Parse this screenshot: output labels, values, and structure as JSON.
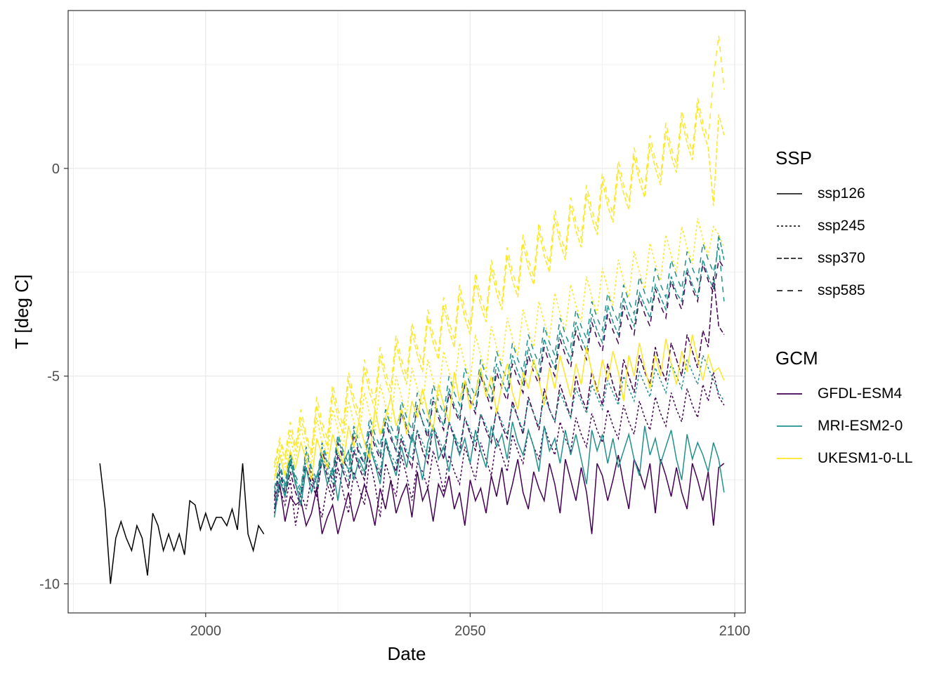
{
  "chart_data": {
    "type": "line",
    "xlabel": "Date",
    "ylabel": "T [deg C]",
    "xlim": [
      1974,
      2102
    ],
    "ylim": [
      -10.7,
      3.8
    ],
    "xticks": [
      2000,
      2050,
      2100
    ],
    "yticks": [
      -10,
      -5,
      0
    ],
    "grid": true,
    "legend": {
      "placement": "right",
      "linetype_title": "SSP",
      "color_title": "GCM",
      "linetypes": [
        {
          "name": "ssp126",
          "dash": ""
        },
        {
          "name": "ssp245",
          "dash": "3,3"
        },
        {
          "name": "ssp370",
          "dash": "7,3"
        },
        {
          "name": "ssp585",
          "dash": "8,7"
        }
      ],
      "colors": [
        {
          "name": "GFDL-ESM4",
          "color": "#440154"
        },
        {
          "name": "MRI-ESM2-0",
          "color": "#21908C"
        },
        {
          "name": "UKESM1-0-LL",
          "color": "#FDE725"
        }
      ]
    },
    "historical": {
      "color": "#000000",
      "x": [
        1980,
        1981,
        1982,
        1983,
        1984,
        1985,
        1986,
        1987,
        1988,
        1989,
        1990,
        1991,
        1992,
        1993,
        1994,
        1995,
        1996,
        1997,
        1998,
        1999,
        2000,
        2001,
        2002,
        2003,
        2004,
        2005,
        2006,
        2007,
        2008,
        2009,
        2010,
        2011
      ],
      "y": [
        -7.1,
        -8.2,
        -10.0,
        -8.9,
        -8.5,
        -8.9,
        -9.2,
        -8.6,
        -8.9,
        -9.8,
        -8.3,
        -8.6,
        -9.2,
        -8.8,
        -9.2,
        -8.8,
        -9.3,
        -8.0,
        -8.1,
        -8.7,
        -8.3,
        -8.7,
        -8.4,
        -8.4,
        -8.6,
        -8.2,
        -8.7,
        -7.1,
        -8.8,
        -9.2,
        -8.6,
        -8.8
      ]
    },
    "scenario_series": [
      {
        "gcm": "GFDL-ESM4",
        "ssp": "ssp126",
        "x_start": 2013,
        "y": [
          -8.2,
          -7.6,
          -8.5,
          -7.9,
          -8.1,
          -8.0,
          -8.6,
          -8.3,
          -7.7,
          -8.8,
          -8.4,
          -8.1,
          -8.8,
          -8.3,
          -7.8,
          -8.5,
          -8.1,
          -7.6,
          -8.0,
          -8.6,
          -7.7,
          -8.2,
          -7.5,
          -8.3,
          -7.9,
          -7.6,
          -8.4,
          -7.3,
          -8.0,
          -7.7,
          -8.5,
          -7.6,
          -7.9,
          -7.4,
          -8.2,
          -7.8,
          -8.6,
          -7.5,
          -8.0,
          -7.7,
          -8.3,
          -7.4,
          -7.9,
          -7.2,
          -8.1,
          -7.6,
          -7.0,
          -7.8,
          -8.2,
          -7.3,
          -7.7,
          -8.0,
          -7.1,
          -7.6,
          -8.3,
          -7.0,
          -7.5,
          -8.0,
          -7.2,
          -7.8,
          -8.8,
          -7.1,
          -7.4,
          -8.0,
          -7.5,
          -6.9,
          -7.6,
          -8.2,
          -7.0,
          -7.3,
          -7.7,
          -7.1,
          -8.3,
          -7.0,
          -7.4,
          -7.9,
          -7.2,
          -7.8,
          -8.2,
          -7.1,
          -7.5,
          -8.0,
          -7.3,
          -8.6,
          -7.2,
          -7.1
        ]
      },
      {
        "gcm": "GFDL-ESM4",
        "ssp": "ssp245",
        "x_start": 2013,
        "y": [
          -8.3,
          -7.7,
          -8.1,
          -7.5,
          -8.6,
          -7.8,
          -8.2,
          -7.4,
          -7.9,
          -8.4,
          -7.6,
          -8.0,
          -7.2,
          -7.8,
          -8.3,
          -7.3,
          -7.7,
          -8.1,
          -7.0,
          -7.6,
          -8.4,
          -7.1,
          -7.5,
          -7.9,
          -6.9,
          -7.4,
          -8.0,
          -7.1,
          -7.3,
          -7.7,
          -6.8,
          -7.2,
          -7.8,
          -6.9,
          -7.3,
          -7.6,
          -6.7,
          -7.1,
          -7.5,
          -6.6,
          -7.0,
          -7.4,
          -6.5,
          -6.9,
          -7.3,
          -6.4,
          -6.8,
          -7.1,
          -6.3,
          -6.7,
          -7.0,
          -6.2,
          -6.6,
          -6.9,
          -6.1,
          -6.5,
          -6.8,
          -6.0,
          -6.4,
          -6.7,
          -5.9,
          -6.3,
          -6.6,
          -5.8,
          -6.2,
          -6.5,
          -5.7,
          -6.1,
          -6.4,
          -5.6,
          -6.0,
          -6.3,
          -5.5,
          -5.9,
          -6.2,
          -5.4,
          -5.8,
          -6.1,
          -5.3,
          -5.7,
          -6.0,
          -5.2,
          -5.6,
          -4.9,
          -5.5,
          -5.7
        ]
      },
      {
        "gcm": "GFDL-ESM4",
        "ssp": "ssp370",
        "x_start": 2013,
        "y": [
          -8.0,
          -7.5,
          -7.9,
          -7.3,
          -7.8,
          -8.1,
          -7.2,
          -7.6,
          -7.9,
          -7.0,
          -7.4,
          -7.8,
          -6.9,
          -7.3,
          -7.7,
          -6.8,
          -7.2,
          -7.5,
          -6.7,
          -7.1,
          -7.4,
          -6.6,
          -7.0,
          -7.3,
          -6.5,
          -6.9,
          -7.2,
          -6.3,
          -6.8,
          -7.1,
          -6.2,
          -6.6,
          -7.0,
          -6.1,
          -6.5,
          -6.9,
          -6.0,
          -6.4,
          -6.8,
          -5.9,
          -6.3,
          -6.6,
          -5.8,
          -6.2,
          -6.5,
          -5.6,
          -6.0,
          -6.4,
          -5.5,
          -5.9,
          -6.3,
          -5.3,
          -5.8,
          -6.1,
          -5.2,
          -5.6,
          -6.0,
          -5.0,
          -5.5,
          -5.8,
          -4.9,
          -5.3,
          -5.7,
          -4.7,
          -5.2,
          -5.6,
          -4.6,
          -5.0,
          -5.4,
          -4.5,
          -4.9,
          -5.2,
          -4.3,
          -4.8,
          -5.1,
          -4.2,
          -4.6,
          -5.0,
          -4.0,
          -4.4,
          -4.8,
          -3.9,
          -4.3,
          -2.6,
          -3.8,
          -4.0
        ]
      },
      {
        "gcm": "GFDL-ESM4",
        "ssp": "ssp585",
        "x_start": 2013,
        "y": [
          -7.9,
          -7.3,
          -7.8,
          -7.1,
          -7.6,
          -7.9,
          -7.0,
          -7.4,
          -7.7,
          -6.8,
          -7.2,
          -7.5,
          -6.6,
          -7.0,
          -7.3,
          -6.4,
          -6.9,
          -7.1,
          -6.3,
          -6.7,
          -7.0,
          -6.1,
          -6.5,
          -6.8,
          -5.9,
          -6.3,
          -6.6,
          -5.7,
          -6.1,
          -6.5,
          -5.6,
          -6.0,
          -6.3,
          -5.4,
          -5.8,
          -6.1,
          -5.2,
          -5.6,
          -5.9,
          -5.0,
          -5.4,
          -5.8,
          -4.9,
          -5.3,
          -5.6,
          -4.7,
          -5.1,
          -5.4,
          -4.5,
          -4.9,
          -5.2,
          -4.3,
          -4.7,
          -5.0,
          -4.1,
          -4.5,
          -4.8,
          -3.9,
          -4.3,
          -4.6,
          -3.7,
          -4.1,
          -4.4,
          -3.5,
          -3.9,
          -4.2,
          -3.3,
          -3.7,
          -4.0,
          -3.1,
          -3.5,
          -3.8,
          -2.9,
          -3.3,
          -3.6,
          -2.7,
          -3.1,
          -3.4,
          -2.5,
          -2.9,
          -3.2,
          -2.3,
          -2.7,
          -3.0,
          -2.2,
          -2.4
        ]
      },
      {
        "gcm": "MRI-ESM2-0",
        "ssp": "ssp126",
        "x_start": 2013,
        "y": [
          -8.4,
          -7.5,
          -7.9,
          -7.0,
          -7.6,
          -8.1,
          -7.2,
          -7.8,
          -7.4,
          -7.0,
          -7.6,
          -7.2,
          -8.0,
          -7.1,
          -6.8,
          -7.5,
          -7.0,
          -7.3,
          -6.7,
          -7.1,
          -7.6,
          -6.5,
          -7.0,
          -7.4,
          -6.7,
          -7.2,
          -6.4,
          -6.9,
          -7.5,
          -6.6,
          -6.2,
          -7.0,
          -6.7,
          -7.3,
          -6.4,
          -6.9,
          -6.5,
          -7.1,
          -6.3,
          -6.8,
          -7.2,
          -6.2,
          -6.7,
          -6.4,
          -7.0,
          -6.1,
          -6.6,
          -6.9,
          -6.3,
          -6.7,
          -7.3,
          -6.2,
          -6.8,
          -6.5,
          -7.1,
          -6.3,
          -6.9,
          -6.4,
          -7.0,
          -7.6,
          -6.3,
          -6.8,
          -6.4,
          -7.1,
          -6.5,
          -7.2,
          -6.8,
          -6.4,
          -7.0,
          -7.4,
          -6.2,
          -6.9,
          -6.5,
          -7.1,
          -6.7,
          -6.3,
          -7.0,
          -7.5,
          -6.4,
          -7.0,
          -6.6,
          -6.9,
          -7.3,
          -6.6,
          -7.0,
          -7.8
        ]
      },
      {
        "gcm": "MRI-ESM2-0",
        "ssp": "ssp245",
        "x_start": 2013,
        "y": [
          -8.1,
          -7.4,
          -7.9,
          -7.1,
          -7.6,
          -7.9,
          -7.0,
          -7.5,
          -7.8,
          -6.9,
          -7.3,
          -7.6,
          -6.8,
          -7.2,
          -7.5,
          -6.7,
          -7.1,
          -7.4,
          -6.6,
          -7.0,
          -7.3,
          -6.5,
          -6.9,
          -7.1,
          -6.4,
          -6.8,
          -7.0,
          -6.3,
          -6.6,
          -6.9,
          -6.2,
          -6.5,
          -6.8,
          -6.1,
          -6.4,
          -6.7,
          -6.0,
          -6.3,
          -6.6,
          -5.9,
          -6.2,
          -6.5,
          -5.8,
          -6.1,
          -6.4,
          -5.7,
          -6.0,
          -6.3,
          -5.6,
          -5.9,
          -6.2,
          -5.5,
          -5.8,
          -6.1,
          -5.4,
          -5.7,
          -6.0,
          -5.3,
          -5.6,
          -5.9,
          -5.2,
          -5.5,
          -5.8,
          -5.1,
          -5.4,
          -5.7,
          -5.0,
          -5.3,
          -5.6,
          -4.9,
          -5.2,
          -5.5,
          -4.8,
          -5.1,
          -5.4,
          -4.7,
          -5.0,
          -5.3,
          -4.6,
          -4.9,
          -5.2,
          -4.5,
          -4.8,
          -5.1,
          -5.4,
          -5.6
        ]
      },
      {
        "gcm": "MRI-ESM2-0",
        "ssp": "ssp370",
        "x_start": 2013,
        "y": [
          -7.8,
          -7.2,
          -7.7,
          -6.9,
          -7.5,
          -7.8,
          -6.8,
          -7.3,
          -7.6,
          -6.7,
          -7.1,
          -7.4,
          -6.5,
          -6.9,
          -7.3,
          -6.3,
          -6.8,
          -7.1,
          -6.2,
          -6.6,
          -6.9,
          -6.0,
          -6.4,
          -6.8,
          -5.8,
          -6.2,
          -6.6,
          -5.7,
          -6.1,
          -6.4,
          -5.5,
          -5.9,
          -6.2,
          -5.3,
          -5.7,
          -6.0,
          -5.1,
          -5.5,
          -5.8,
          -4.9,
          -5.3,
          -5.6,
          -4.7,
          -5.1,
          -5.4,
          -4.5,
          -4.9,
          -5.2,
          -4.3,
          -4.7,
          -5.0,
          -4.1,
          -4.5,
          -4.8,
          -3.9,
          -4.3,
          -4.6,
          -3.7,
          -4.1,
          -4.4,
          -3.5,
          -3.9,
          -4.2,
          -3.3,
          -3.7,
          -4.0,
          -3.1,
          -3.5,
          -3.8,
          -3.0,
          -3.3,
          -3.6,
          -2.8,
          -3.1,
          -3.4,
          -2.6,
          -3.0,
          -3.2,
          -2.4,
          -2.8,
          -3.1,
          -2.2,
          -2.6,
          -2.9,
          -1.6,
          -2.2
        ]
      },
      {
        "gcm": "MRI-ESM2-0",
        "ssp": "ssp585",
        "x_start": 2013,
        "y": [
          -7.7,
          -7.1,
          -7.6,
          -6.8,
          -7.4,
          -7.7,
          -6.7,
          -7.2,
          -7.5,
          -6.6,
          -7.0,
          -7.3,
          -6.4,
          -6.8,
          -7.1,
          -6.2,
          -6.6,
          -6.9,
          -6.0,
          -6.4,
          -6.7,
          -5.8,
          -6.2,
          -6.5,
          -5.6,
          -6.0,
          -6.3,
          -5.4,
          -5.8,
          -6.1,
          -5.2,
          -5.6,
          -5.9,
          -5.0,
          -5.4,
          -5.7,
          -4.8,
          -5.2,
          -5.5,
          -4.6,
          -5.0,
          -5.3,
          -4.4,
          -4.8,
          -5.1,
          -4.2,
          -4.6,
          -4.9,
          -4.0,
          -4.4,
          -4.7,
          -3.8,
          -4.2,
          -4.5,
          -3.6,
          -4.0,
          -4.3,
          -3.4,
          -3.8,
          -4.1,
          -3.2,
          -3.6,
          -3.9,
          -3.0,
          -3.4,
          -3.7,
          -2.8,
          -3.2,
          -3.5,
          -2.6,
          -3.0,
          -3.3,
          -2.4,
          -2.8,
          -3.1,
          -2.2,
          -2.6,
          -2.9,
          -2.0,
          -2.4,
          -2.7,
          -1.8,
          -2.2,
          -2.5,
          -1.9,
          -3.2
        ]
      },
      {
        "gcm": "UKESM1-0-LL",
        "ssp": "ssp126",
        "x_start": 2013,
        "y": [
          -7.5,
          -6.9,
          -7.4,
          -6.8,
          -7.2,
          -6.6,
          -7.0,
          -7.5,
          -6.5,
          -6.9,
          -7.2,
          -6.4,
          -6.8,
          -7.1,
          -6.2,
          -6.7,
          -6.1,
          -6.6,
          -7.0,
          -5.8,
          -6.4,
          -6.0,
          -5.5,
          -6.2,
          -5.8,
          -6.4,
          -5.6,
          -6.0,
          -5.3,
          -5.9,
          -6.3,
          -5.2,
          -5.7,
          -6.1,
          -4.9,
          -5.6,
          -5.1,
          -5.8,
          -5.4,
          -4.8,
          -5.5,
          -5.0,
          -5.9,
          -5.2,
          -4.7,
          -5.4,
          -5.8,
          -4.9,
          -5.3,
          -4.6,
          -5.1,
          -5.7,
          -4.8,
          -5.3,
          -4.5,
          -5.0,
          -5.5,
          -4.7,
          -5.2,
          -4.3,
          -4.9,
          -5.4,
          -4.6,
          -5.1,
          -4.4,
          -4.9,
          -5.6,
          -4.5,
          -5.0,
          -4.2,
          -4.8,
          -5.3,
          -4.5,
          -5.0,
          -4.1,
          -4.7,
          -5.2,
          -4.4,
          -4.9,
          -4.0,
          -4.6,
          -5.1,
          -4.5,
          -4.9,
          -4.8,
          -5.1
        ]
      },
      {
        "gcm": "UKESM1-0-LL",
        "ssp": "ssp245",
        "x_start": 2013,
        "y": [
          -7.4,
          -6.8,
          -7.2,
          -6.5,
          -7.0,
          -6.2,
          -6.8,
          -7.1,
          -6.0,
          -6.6,
          -6.9,
          -5.8,
          -6.3,
          -6.7,
          -5.6,
          -6.1,
          -6.5,
          -5.4,
          -5.9,
          -6.3,
          -5.2,
          -5.7,
          -6.1,
          -5.0,
          -5.5,
          -5.9,
          -4.8,
          -5.3,
          -5.7,
          -4.6,
          -5.1,
          -5.5,
          -4.4,
          -4.9,
          -5.3,
          -4.2,
          -4.7,
          -5.1,
          -4.0,
          -4.5,
          -4.9,
          -3.8,
          -4.3,
          -4.7,
          -3.6,
          -4.1,
          -4.5,
          -3.4,
          -3.9,
          -4.3,
          -3.2,
          -3.7,
          -4.1,
          -3.0,
          -3.5,
          -3.9,
          -2.8,
          -3.3,
          -3.7,
          -2.6,
          -3.1,
          -3.5,
          -2.4,
          -2.9,
          -3.3,
          -2.2,
          -2.7,
          -3.1,
          -2.0,
          -2.5,
          -2.9,
          -1.8,
          -2.3,
          -2.7,
          -1.6,
          -2.1,
          -2.5,
          -1.4,
          -1.9,
          -2.3,
          -1.2,
          -1.7,
          -2.1,
          -1.4,
          -1.6,
          -1.9
        ]
      },
      {
        "gcm": "UKESM1-0-LL",
        "ssp": "ssp370",
        "x_start": 2013,
        "y": [
          -7.2,
          -6.6,
          -7.0,
          -6.3,
          -6.8,
          -6.0,
          -6.5,
          -6.9,
          -5.7,
          -6.3,
          -6.7,
          -5.4,
          -6.0,
          -6.4,
          -5.1,
          -5.7,
          -6.1,
          -4.8,
          -5.4,
          -5.8,
          -4.5,
          -5.1,
          -5.5,
          -4.2,
          -4.8,
          -5.2,
          -3.9,
          -4.5,
          -4.9,
          -3.6,
          -4.2,
          -4.6,
          -3.3,
          -3.9,
          -4.3,
          -3.0,
          -3.6,
          -4.0,
          -2.7,
          -3.3,
          -3.7,
          -2.4,
          -3.0,
          -3.4,
          -2.1,
          -2.7,
          -3.1,
          -1.8,
          -2.4,
          -2.8,
          -1.5,
          -2.1,
          -2.5,
          -1.2,
          -1.8,
          -2.2,
          -0.9,
          -1.5,
          -1.9,
          -0.6,
          -1.2,
          -1.6,
          -0.3,
          -0.9,
          -1.3,
          0.0,
          -0.6,
          -1.0,
          0.3,
          -0.3,
          -0.7,
          0.6,
          0.0,
          -0.4,
          0.9,
          0.3,
          -0.1,
          1.2,
          0.6,
          0.2,
          1.5,
          0.9,
          0.5,
          -0.9,
          1.3,
          0.8
        ]
      },
      {
        "gcm": "UKESM1-0-LL",
        "ssp": "ssp585",
        "x_start": 2013,
        "y": [
          -7.1,
          -6.5,
          -6.9,
          -6.1,
          -6.7,
          -5.8,
          -6.4,
          -6.8,
          -5.5,
          -6.1,
          -6.5,
          -5.2,
          -5.8,
          -6.2,
          -4.9,
          -5.5,
          -5.9,
          -4.6,
          -5.2,
          -5.6,
          -4.3,
          -4.9,
          -5.3,
          -4.0,
          -4.6,
          -5.0,
          -3.7,
          -4.3,
          -4.7,
          -3.4,
          -4.0,
          -4.4,
          -3.1,
          -3.7,
          -4.1,
          -2.8,
          -3.4,
          -3.8,
          -2.5,
          -3.1,
          -3.5,
          -2.2,
          -2.8,
          -3.2,
          -1.9,
          -2.5,
          -2.9,
          -1.6,
          -2.2,
          -2.6,
          -1.3,
          -1.9,
          -2.3,
          -1.0,
          -1.6,
          -2.0,
          -0.7,
          -1.3,
          -1.7,
          -0.4,
          -1.0,
          -1.4,
          -0.1,
          -0.7,
          -1.1,
          0.2,
          -0.4,
          -0.8,
          0.5,
          -0.1,
          -0.5,
          0.8,
          0.2,
          -0.2,
          1.1,
          0.5,
          0.1,
          1.4,
          0.8,
          0.4,
          1.7,
          1.1,
          0.7,
          2.2,
          3.2,
          1.9
        ]
      }
    ]
  }
}
